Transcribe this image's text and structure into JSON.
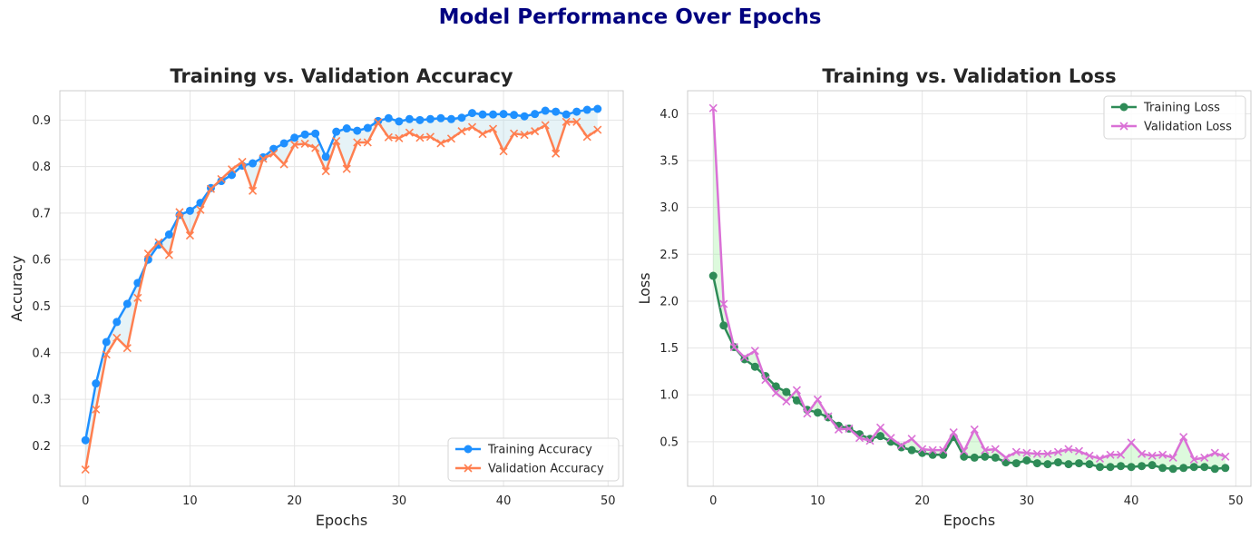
{
  "suptitle": "Model Performance Over Epochs",
  "chart_data": [
    {
      "type": "line",
      "title": "Training vs. Validation Accuracy",
      "xlabel": "Epochs",
      "ylabel": "Accuracy",
      "xlim": [
        -2.45,
        51.45
      ],
      "ylim": [
        0.113,
        0.963
      ],
      "xticks": [
        0,
        10,
        20,
        30,
        40,
        50
      ],
      "yticks": [
        0.2,
        0.3,
        0.4,
        0.5,
        0.6,
        0.7,
        0.8,
        0.9
      ],
      "grid": true,
      "legend_position": "lower-right",
      "fill_between": {
        "color": "#add8e6",
        "opacity": 0.3
      },
      "x": [
        0,
        1,
        2,
        3,
        4,
        5,
        6,
        7,
        8,
        9,
        10,
        11,
        12,
        13,
        14,
        15,
        16,
        17,
        18,
        19,
        20,
        21,
        22,
        23,
        24,
        25,
        26,
        27,
        28,
        29,
        30,
        31,
        32,
        33,
        34,
        35,
        36,
        37,
        38,
        39,
        40,
        41,
        42,
        43,
        44,
        45,
        46,
        47,
        48,
        49
      ],
      "series": [
        {
          "name": "Training Accuracy",
          "color": "#1e90ff",
          "marker": "circle",
          "values": [
            0.212,
            0.334,
            0.423,
            0.466,
            0.505,
            0.55,
            0.6,
            0.632,
            0.654,
            0.696,
            0.705,
            0.722,
            0.754,
            0.769,
            0.782,
            0.802,
            0.807,
            0.82,
            0.838,
            0.85,
            0.862,
            0.869,
            0.871,
            0.821,
            0.875,
            0.882,
            0.877,
            0.883,
            0.898,
            0.904,
            0.897,
            0.902,
            0.9,
            0.902,
            0.904,
            0.902,
            0.905,
            0.915,
            0.912,
            0.912,
            0.913,
            0.911,
            0.908,
            0.913,
            0.92,
            0.918,
            0.912,
            0.918,
            0.922,
            0.924
          ]
        },
        {
          "name": "Validation Accuracy",
          "color": "#ff7f50",
          "marker": "x",
          "values": [
            0.149,
            0.278,
            0.396,
            0.432,
            0.41,
            0.518,
            0.613,
            0.637,
            0.61,
            0.702,
            0.652,
            0.707,
            0.752,
            0.773,
            0.794,
            0.81,
            0.748,
            0.817,
            0.828,
            0.805,
            0.847,
            0.849,
            0.84,
            0.79,
            0.855,
            0.795,
            0.852,
            0.852,
            0.895,
            0.863,
            0.861,
            0.873,
            0.862,
            0.864,
            0.85,
            0.86,
            0.876,
            0.885,
            0.87,
            0.881,
            0.833,
            0.871,
            0.868,
            0.876,
            0.889,
            0.828,
            0.896,
            0.896,
            0.864,
            0.879
          ]
        }
      ]
    },
    {
      "type": "line",
      "title": "Training vs. Validation Loss",
      "xlabel": "Epochs",
      "ylabel": "Loss",
      "xlim": [
        -2.45,
        51.45
      ],
      "ylim": [
        0.024,
        4.246
      ],
      "xticks": [
        0,
        10,
        20,
        30,
        40,
        50
      ],
      "yticks": [
        0.5,
        1.0,
        1.5,
        2.0,
        2.5,
        3.0,
        3.5,
        4.0
      ],
      "ytick_labels": [
        "0.5",
        "1.0",
        "1.5",
        "2.0",
        "2.5",
        "3.0",
        "3.5",
        "4.0"
      ],
      "grid": true,
      "legend_position": "upper-right",
      "fill_between": {
        "color": "#90ee90",
        "opacity": 0.3
      },
      "x": [
        0,
        1,
        2,
        3,
        4,
        5,
        6,
        7,
        8,
        9,
        10,
        11,
        12,
        13,
        14,
        15,
        16,
        17,
        18,
        19,
        20,
        21,
        22,
        23,
        24,
        25,
        26,
        27,
        28,
        29,
        30,
        31,
        32,
        33,
        34,
        35,
        36,
        37,
        38,
        39,
        40,
        41,
        42,
        43,
        44,
        45,
        46,
        47,
        48,
        49
      ],
      "series": [
        {
          "name": "Training Loss",
          "color": "#2e8b57",
          "marker": "circle",
          "values": [
            2.27,
            1.74,
            1.51,
            1.38,
            1.3,
            1.2,
            1.09,
            1.03,
            0.94,
            0.84,
            0.81,
            0.76,
            0.67,
            0.64,
            0.58,
            0.53,
            0.56,
            0.5,
            0.44,
            0.41,
            0.38,
            0.36,
            0.36,
            0.55,
            0.34,
            0.33,
            0.34,
            0.33,
            0.28,
            0.27,
            0.3,
            0.27,
            0.26,
            0.28,
            0.26,
            0.27,
            0.26,
            0.23,
            0.23,
            0.24,
            0.23,
            0.24,
            0.25,
            0.22,
            0.21,
            0.22,
            0.23,
            0.23,
            0.21,
            0.22
          ]
        },
        {
          "name": "Validation Loss",
          "color": "#da70d6",
          "marker": "x",
          "values": [
            4.06,
            1.97,
            1.51,
            1.4,
            1.47,
            1.16,
            1.02,
            0.93,
            1.05,
            0.8,
            0.95,
            0.77,
            0.63,
            0.64,
            0.54,
            0.51,
            0.65,
            0.54,
            0.46,
            0.53,
            0.42,
            0.41,
            0.41,
            0.6,
            0.4,
            0.63,
            0.41,
            0.42,
            0.33,
            0.39,
            0.38,
            0.37,
            0.37,
            0.39,
            0.42,
            0.4,
            0.35,
            0.32,
            0.36,
            0.36,
            0.49,
            0.37,
            0.35,
            0.36,
            0.33,
            0.55,
            0.31,
            0.33,
            0.38,
            0.34
          ]
        }
      ]
    }
  ]
}
